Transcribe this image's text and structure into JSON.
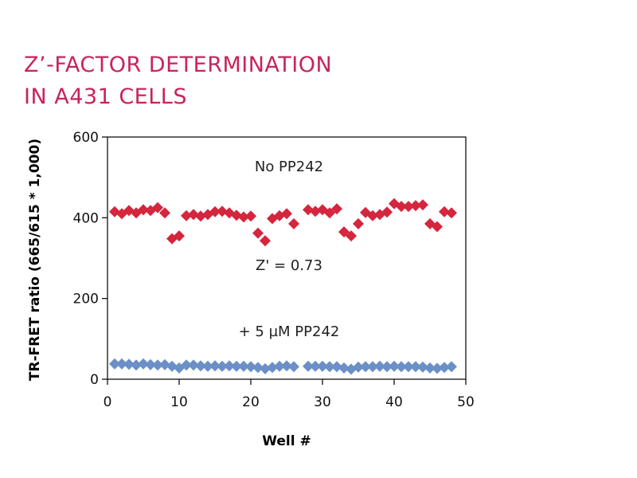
{
  "page": {
    "title_line1": "Z’-FACTOR DETERMINATION",
    "title_line2": "IN A431 CELLS"
  },
  "chart_data": {
    "type": "scatter",
    "title": "Z’-FACTOR DETERMINATION IN A431 CELLS",
    "xlabel": "Well #",
    "ylabel": "TR-FRET ratio (665/615 * 1,000)",
    "xlim": [
      0,
      50
    ],
    "ylim": [
      0,
      600
    ],
    "xticks": [
      0,
      10,
      20,
      30,
      40,
      50
    ],
    "yticks": [
      0,
      200,
      400,
      600
    ],
    "grid": false,
    "legend": "none",
    "annotations": [
      {
        "text": "No PP242",
        "x": 25,
        "y": 515
      },
      {
        "text": "Z' = 0.73",
        "x": 25,
        "y": 270
      },
      {
        "text": "+ 5 µM PP242",
        "x": 25,
        "y": 107
      }
    ],
    "series": [
      {
        "color": "#d4263d",
        "marker": "diamond",
        "x": [
          1,
          2,
          3,
          4,
          5,
          6,
          7,
          8,
          9,
          10,
          11,
          12,
          13,
          14,
          15,
          16,
          17,
          18,
          19,
          20,
          21,
          22,
          23,
          24,
          25,
          26,
          28,
          29,
          30,
          31,
          32,
          33,
          34,
          35,
          36,
          37,
          38,
          39,
          40,
          41,
          42,
          43,
          44,
          45,
          46,
          47,
          48
        ],
        "y": [
          415,
          410,
          418,
          412,
          420,
          418,
          425,
          412,
          348,
          355,
          405,
          408,
          404,
          408,
          415,
          416,
          412,
          406,
          402,
          404,
          362,
          343,
          398,
          405,
          410,
          385,
          420,
          416,
          420,
          412,
          422,
          365,
          355,
          385,
          413,
          405,
          408,
          414,
          435,
          428,
          428,
          430,
          432,
          385,
          378,
          415,
          412
        ]
      },
      {
        "color": "#6b8fc7",
        "marker": "diamond",
        "x": [
          1,
          2,
          3,
          4,
          5,
          6,
          7,
          8,
          9,
          10,
          11,
          12,
          13,
          14,
          15,
          16,
          17,
          18,
          19,
          20,
          21,
          22,
          23,
          24,
          25,
          26,
          28,
          29,
          30,
          31,
          32,
          33,
          34,
          35,
          36,
          37,
          38,
          39,
          40,
          41,
          42,
          43,
          44,
          45,
          46,
          47,
          48
        ],
        "y": [
          38,
          38,
          37,
          35,
          38,
          36,
          35,
          36,
          32,
          28,
          35,
          35,
          33,
          32,
          33,
          32,
          33,
          32,
          32,
          31,
          29,
          26,
          29,
          32,
          33,
          31,
          32,
          32,
          32,
          31,
          31,
          28,
          25,
          30,
          31,
          31,
          32,
          31,
          32,
          31,
          31,
          31,
          30,
          28,
          27,
          29,
          31
        ]
      }
    ]
  }
}
